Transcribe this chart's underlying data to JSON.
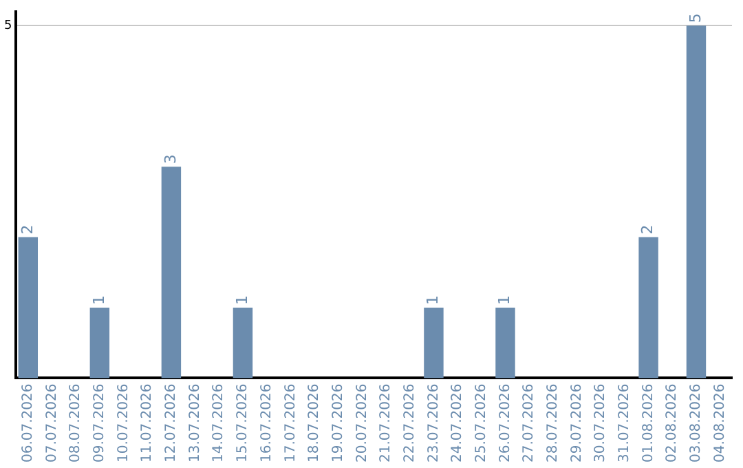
{
  "chart_data": {
    "type": "bar",
    "categories": [
      "06.07.2026",
      "07.07.2026",
      "08.07.2026",
      "09.07.2026",
      "10.07.2026",
      "11.07.2026",
      "12.07.2026",
      "13.07.2026",
      "14.07.2026",
      "15.07.2026",
      "16.07.2026",
      "17.07.2026",
      "18.07.2026",
      "19.07.2026",
      "20.07.2026",
      "21.07.2026",
      "22.07.2026",
      "23.07.2026",
      "24.07.2026",
      "25.07.2026",
      "26.07.2026",
      "27.07.2026",
      "28.07.2026",
      "29.07.2026",
      "30.07.2026",
      "31.07.2026",
      "01.08.2026",
      "02.08.2026",
      "03.08.2026",
      "04.08.2026"
    ],
    "values": [
      2,
      0,
      0,
      1,
      0,
      0,
      3,
      0,
      0,
      1,
      0,
      0,
      0,
      0,
      0,
      0,
      0,
      1,
      0,
      0,
      1,
      0,
      0,
      0,
      0,
      0,
      2,
      0,
      5,
      0
    ],
    "value_labels": [
      "2",
      null,
      null,
      "1",
      null,
      null,
      "3",
      null,
      null,
      "1",
      null,
      null,
      null,
      null,
      null,
      null,
      null,
      "1",
      null,
      null,
      "1",
      null,
      null,
      null,
      null,
      null,
      "2",
      null,
      "5",
      null
    ],
    "color": "#6b8cae",
    "ylim": [
      0,
      5.2
    ],
    "yticks": [
      5
    ],
    "grid": "y"
  }
}
